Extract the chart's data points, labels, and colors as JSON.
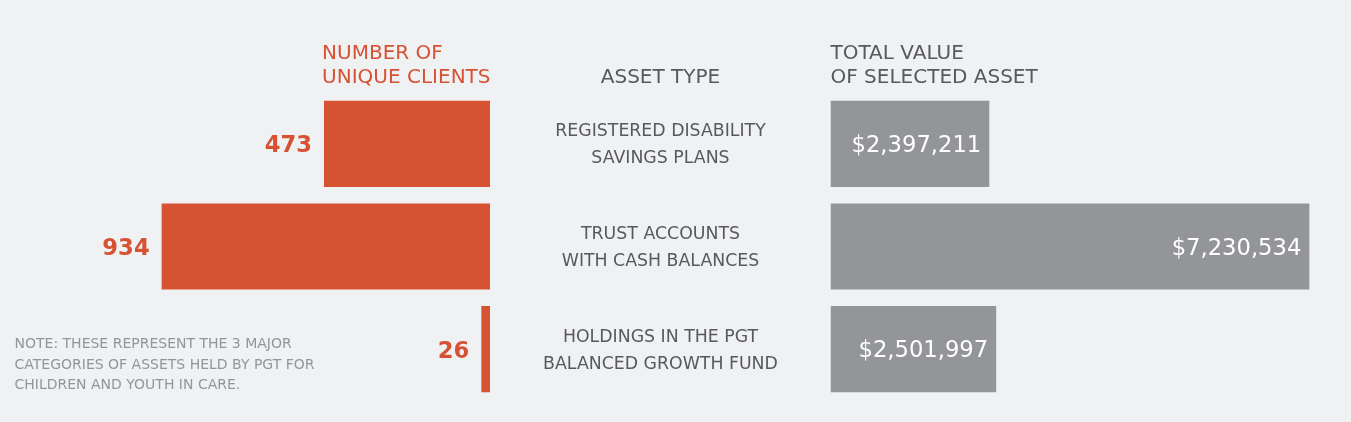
{
  "chart_data": [
    {
      "type": "bar",
      "orientation": "horizontal",
      "title": "NUMBER OF\nUNIQUE CLIENTS",
      "ylabel": "ASSET TYPE",
      "categories": [
        "REGISTERED DISABILITY\nSAVINGS PLANS",
        "TRUST ACCOUNTS\nWITH CASH BALANCES",
        "HOLDINGS IN THE PGT\nBALANCED GROWTH FUND"
      ],
      "values": [
        473,
        934,
        26
      ],
      "color": "#d65233",
      "data_labels": true,
      "annotations": [
        "NOTE:   THESE REPRESENT THE 3 MAJOR CATEGORIES OF ASSETS HELD BY PGT FOR CHILDREN AND YOUTH IN CARE."
      ]
    },
    {
      "type": "bar",
      "orientation": "horizontal",
      "title": "TOTAL VALUE\nOF SELECTED ASSET",
      "categories": [
        null,
        null,
        null
      ],
      "values": [
        2397211,
        7230534,
        2501997
      ],
      "color": "#939598",
      "value_labels": [
        "$2,397,211",
        "$7,230,534",
        "$2,501,997"
      ]
    }
  ]
}
